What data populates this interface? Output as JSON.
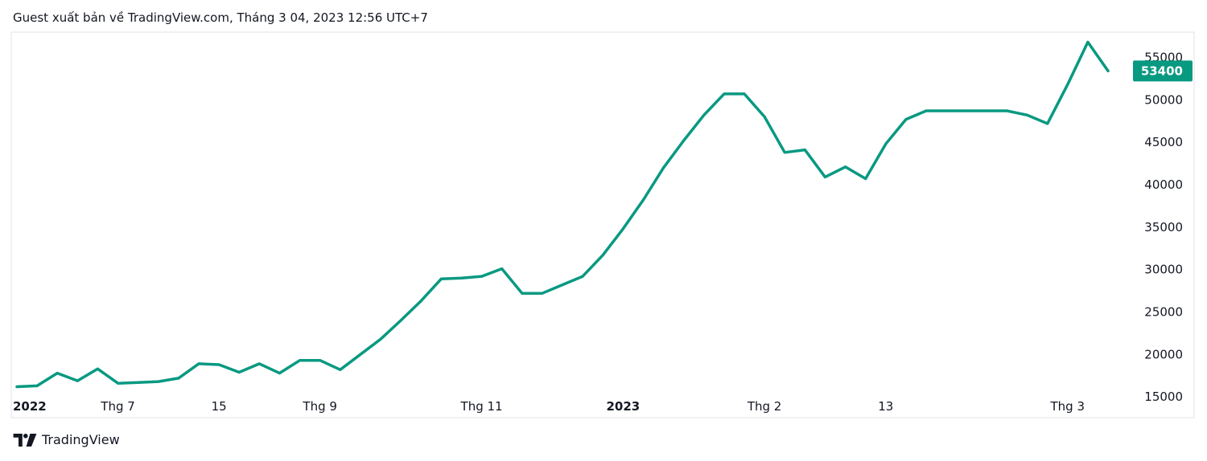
{
  "header": {
    "text": "Guest xuất bản về TradingView.com, Tháng 3 04, 2023 12:56 UTC+7"
  },
  "brand": {
    "name": "TradingView",
    "icon": "tradingview-logo-icon"
  },
  "colors": {
    "line": "#089981",
    "price_tag_bg": "#089981",
    "border": "#e0e3eb",
    "text": "#131722"
  },
  "chart_data": {
    "type": "line",
    "title": "",
    "xlabel": "",
    "ylabel": "",
    "ylim": [
      13500,
      57500
    ],
    "y_ticks": [
      "15000",
      "20000",
      "25000",
      "30000",
      "35000",
      "40000",
      "45000",
      "50000",
      "55000"
    ],
    "x_ticks": [
      {
        "label": "2022",
        "index": 0,
        "bold": true
      },
      {
        "label": "Thg 7",
        "index": 5,
        "bold": false
      },
      {
        "label": "15",
        "index": 10,
        "bold": false
      },
      {
        "label": "Thg 9",
        "index": 15,
        "bold": false
      },
      {
        "label": "Thg 11",
        "index": 23,
        "bold": false
      },
      {
        "label": "2023",
        "index": 30,
        "bold": true
      },
      {
        "label": "Thg 2",
        "index": 37,
        "bold": false
      },
      {
        "label": "13",
        "index": 43,
        "bold": false
      },
      {
        "label": "Thg 3",
        "index": 52,
        "bold": false
      }
    ],
    "last_price_label": "53400",
    "last_price": 53400,
    "series": [
      {
        "values": [
          16200,
          16300,
          17800,
          16900,
          18300,
          16600,
          16700,
          16800,
          17200,
          18900,
          18800,
          17900,
          18900,
          17800,
          19300,
          19300,
          18200,
          20000,
          21800,
          24000,
          26300,
          28900,
          29000,
          29200,
          30100,
          27200,
          27200,
          28200,
          29200,
          31700,
          34800,
          38200,
          42000,
          45200,
          48200,
          50700,
          50700,
          48000,
          43800,
          44100,
          40900,
          42100,
          40700,
          44800,
          47700,
          48700,
          48700,
          48700,
          48700,
          48700,
          48200,
          47200,
          51800,
          56800,
          53400
        ]
      }
    ]
  }
}
